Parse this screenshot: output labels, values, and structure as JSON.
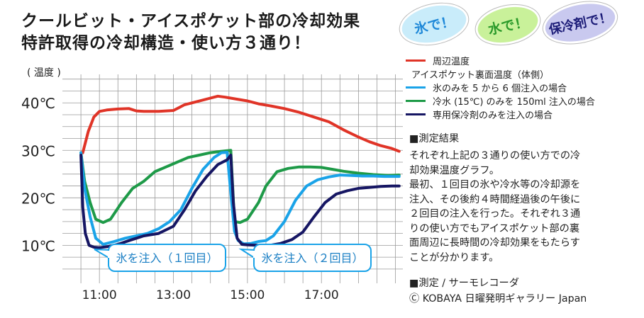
{
  "title": {
    "line1": "クールビット・アイスポケット部の冷却効果",
    "line2": "特許取得の冷却構造・使い方３通り！"
  },
  "badges": [
    "氷で！",
    "水で！",
    "保冷剤で！"
  ],
  "legend": {
    "items": [
      {
        "label": "周辺温度",
        "color": "#e03427"
      },
      {
        "label": "アイスポケット裏面温度（体側）",
        "color": ""
      },
      {
        "label": "氷のみを 5 から 6 個注入の場合",
        "color": "#1aa3e8"
      },
      {
        "label": "冷水 (15℃) のみを 150ml 注入の場合",
        "color": "#1e9a48"
      },
      {
        "label": "専用保冷剤のみを注入の場合",
        "color": "#161663"
      }
    ]
  },
  "info": {
    "result_heading": "■測定結果",
    "result_lines": [
      "それぞれ上記の３通りの使い方での冷",
      "却効果温度グラフ。",
      "最初、１回目の氷や冷水等の冷却源を",
      "注入、その後約４時間経過後の午後に",
      "２回目の注入を行った。それぞれ３通",
      "りの使い方でもアイスポケット部の裏",
      "面周辺に長時間の冷却効果をもたらす",
      "ことが分かります。"
    ],
    "measure": "■測定 / サーモレコーダ",
    "copyright": "Ⓒ KOBAYA 日曜発明ギャラリー Japan"
  },
  "chart_data": {
    "type": "line",
    "ylabel": "( 温度 )",
    "ylim": [
      2,
      46
    ],
    "xlim": [
      10.0,
      19.2
    ],
    "yticks": [
      10,
      20,
      30,
      40
    ],
    "ytick_labels": [
      "10℃",
      "20℃",
      "30℃",
      "40℃"
    ],
    "xticks": [
      11,
      13,
      15,
      17
    ],
    "xtick_labels": [
      "11:00",
      "13:00",
      "15:00",
      "17:00"
    ],
    "grid": true,
    "annotations": [
      {
        "text": "氷を注入（１回目）",
        "x": 10.5
      },
      {
        "text": "氷を注入（２回目）",
        "x": 14.6
      }
    ],
    "series": [
      {
        "name": "周辺温度",
        "color": "#e03427",
        "x": [
          10.55,
          10.7,
          10.85,
          11.0,
          11.2,
          11.5,
          11.8,
          12.0,
          12.2,
          12.6,
          13.0,
          13.3,
          13.6,
          14.0,
          14.2,
          14.4,
          14.7,
          15.0,
          15.3,
          15.6,
          16.0,
          16.4,
          16.8,
          17.2,
          17.6,
          18.0,
          18.3,
          18.6,
          18.9,
          19.1
        ],
        "y": [
          29.5,
          34,
          37,
          38.2,
          38.5,
          38.7,
          38.8,
          38.3,
          38.2,
          38.2,
          38.4,
          39.6,
          40.2,
          41,
          41.4,
          41.2,
          40.8,
          40.4,
          39.8,
          39.4,
          38.8,
          38,
          37,
          36,
          34.3,
          32.8,
          31.8,
          31,
          30.4,
          29.8
        ]
      },
      {
        "name": "氷のみを 5 から 6 個注入の場合",
        "color": "#1aa3e8",
        "x": [
          10.5,
          10.6,
          10.75,
          10.9,
          11.1,
          11.4,
          11.7,
          12.0,
          12.3,
          12.6,
          12.9,
          13.2,
          13.5,
          13.8,
          14.1,
          14.3,
          14.45,
          14.55,
          14.65,
          14.75,
          14.9,
          15.1,
          15.3,
          15.5,
          15.7,
          16.0,
          16.3,
          16.6,
          16.9,
          17.2,
          17.5,
          17.8,
          18.1,
          18.4,
          18.7,
          19.1
        ],
        "y": [
          29.5,
          22,
          16,
          11.5,
          10.2,
          10.8,
          11.5,
          12,
          12.5,
          13.5,
          15,
          17.5,
          22,
          26,
          28.5,
          29.5,
          29.6,
          21,
          13,
          11,
          10.3,
          10.4,
          10.8,
          11,
          12,
          15,
          19.5,
          22.5,
          23.8,
          24.4,
          24.8,
          24.7,
          24.6,
          24.6,
          24.5,
          24.5
        ]
      },
      {
        "name": "冷水 (15℃) のみを 150ml 注入の場合",
        "color": "#1e9a48",
        "x": [
          10.5,
          10.6,
          10.75,
          10.9,
          11.1,
          11.3,
          11.6,
          11.9,
          12.2,
          12.5,
          12.8,
          13.1,
          13.4,
          13.7,
          14.0,
          14.3,
          14.55,
          14.65,
          14.8,
          15.0,
          15.3,
          15.5,
          15.8,
          16.1,
          16.4,
          16.7,
          17.0,
          17.3,
          17.6,
          18.0,
          18.4,
          18.8,
          19.1
        ],
        "y": [
          29.5,
          23.5,
          19,
          15.5,
          14.8,
          15.5,
          19,
          22,
          23.5,
          25.5,
          26.5,
          27.5,
          28.5,
          29,
          29.5,
          29.8,
          30,
          15,
          14.8,
          15.5,
          19,
          22.5,
          25.5,
          26.2,
          26.5,
          26.5,
          26.4,
          26,
          25.6,
          25.2,
          24.9,
          24.7,
          24.8
        ]
      },
      {
        "name": "専用保冷剤のみを注入の場合",
        "color": "#161663",
        "x": [
          10.5,
          10.55,
          10.62,
          10.72,
          10.85,
          11.0,
          11.2,
          11.5,
          11.8,
          12.2,
          12.6,
          13.0,
          13.3,
          13.6,
          13.9,
          14.2,
          14.45,
          14.55,
          14.62,
          14.72,
          14.85,
          15.0,
          15.3,
          15.6,
          15.9,
          16.2,
          16.5,
          16.8,
          17.1,
          17.4,
          17.7,
          18.0,
          18.3,
          18.6,
          18.9,
          19.1
        ],
        "y": [
          29,
          18,
          12.5,
          10,
          9.6,
          9.5,
          9.7,
          10.2,
          11,
          12,
          12.5,
          14,
          17.5,
          21.5,
          24.5,
          27,
          28,
          29,
          19,
          11.5,
          10.2,
          10.1,
          10,
          10,
          10.4,
          11.2,
          12.8,
          16,
          19,
          20.8,
          21.5,
          22,
          22.2,
          22.4,
          22.5,
          22.5
        ]
      }
    ]
  }
}
